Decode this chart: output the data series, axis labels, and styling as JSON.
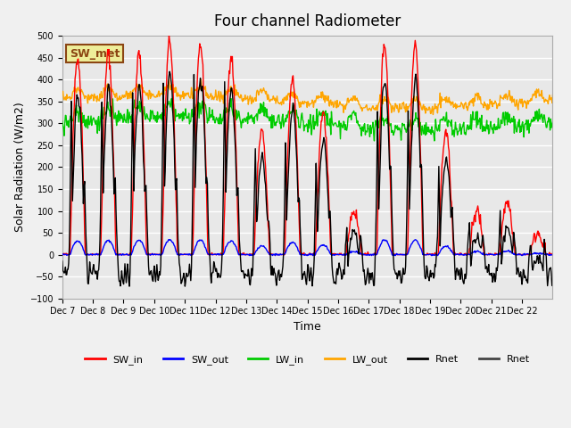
{
  "title": "Four channel Radiometer",
  "xlabel": "Time",
  "ylabel": "Solar Radiation (W/m2)",
  "ylim": [
    -100,
    500
  ],
  "xtick_labels": [
    "Dec 7",
    "Dec 8",
    "Dec 9",
    "Dec 10",
    "Dec 11",
    "Dec 12",
    "Dec 13",
    "Dec 14",
    "Dec 15",
    "Dec 16",
    "Dec 17",
    "Dec 18",
    "Dec 19",
    "Dec 20",
    "Dec 21",
    "Dec 22"
  ],
  "annotation_text": "SW_met",
  "annotation_color": "#8B4513",
  "annotation_bg": "#EEEE99",
  "colors": {
    "SW_in": "#FF0000",
    "SW_out": "#0000FF",
    "LW_in": "#00CC00",
    "LW_out": "#FFA500",
    "Rnet_black": "#000000",
    "Rnet_dark": "#444444"
  },
  "background_color": "#E8E8E8",
  "grid_color": "#FFFFFF",
  "n_days": 16,
  "pts_per_day": 48
}
